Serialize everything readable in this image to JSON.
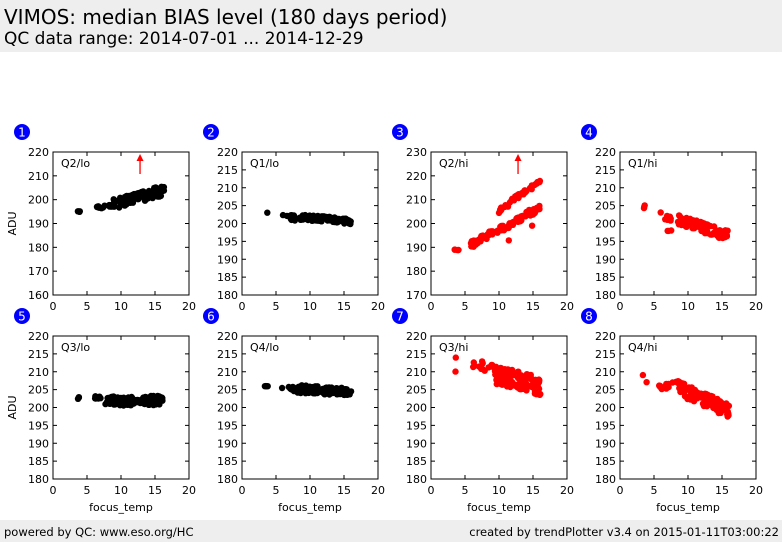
{
  "header": {
    "title": "VIMOS: median BIAS level (180 days period)",
    "subtitle": "QC data range: 2014-07-01 ... 2014-12-29"
  },
  "footer": {
    "left": "powered by QC: www.eso.org/HC",
    "right": "created by trendPlotter v3.4 on 2015-01-11T03:00:22"
  },
  "colors": {
    "lo_series": "#000000",
    "hi_series": "#ff0000",
    "badge": "#0000ff",
    "header_bg": "#eeeeee"
  },
  "chart_data": [
    {
      "type": "scatter",
      "index": "1",
      "label": "Q2/lo",
      "color": "#000000",
      "xlabel": "",
      "ylabel": "ADU",
      "xlim": [
        0,
        20
      ],
      "ylim": [
        160,
        220
      ],
      "xticks": [
        "0",
        "5",
        "10",
        "15",
        "20"
      ],
      "yticks": [
        "160",
        "170",
        "180",
        "190",
        "200",
        "210",
        "220"
      ],
      "out_of_range_arrow": {
        "x": 12.8,
        "direction": "up"
      },
      "clusters": [
        {
          "x0": 3.5,
          "x1": 3.9,
          "y0": 195,
          "y1": 195,
          "spread": 0.3,
          "n": 4
        },
        {
          "x0": 5.8,
          "x1": 9.0,
          "y0": 196,
          "y1": 198,
          "spread": 0.8,
          "n": 14
        },
        {
          "x0": 9.0,
          "x1": 16.3,
          "y0": 198,
          "y1": 204,
          "spread": 2.2,
          "n": 90
        }
      ]
    },
    {
      "type": "scatter",
      "index": "2",
      "label": "Q1/lo",
      "color": "#000000",
      "xlabel": "",
      "ylabel": "",
      "xlim": [
        0,
        20
      ],
      "ylim": [
        180,
        220
      ],
      "xticks": [
        "0",
        "5",
        "10",
        "15",
        "20"
      ],
      "yticks": [
        "180",
        "185",
        "190",
        "195",
        "200",
        "205",
        "210",
        "215",
        "220"
      ],
      "clusters": [
        {
          "x0": 3.6,
          "x1": 3.6,
          "y0": 203,
          "y1": 203,
          "spread": 0.1,
          "n": 1
        },
        {
          "x0": 5.8,
          "x1": 8.0,
          "y0": 202.5,
          "y1": 201.5,
          "spread": 0.8,
          "n": 10
        },
        {
          "x0": 8.5,
          "x1": 16.1,
          "y0": 201.8,
          "y1": 200.6,
          "spread": 0.8,
          "n": 90
        }
      ]
    },
    {
      "type": "scatter",
      "index": "3",
      "label": "Q2/hi",
      "color": "#ff0000",
      "xlabel": "",
      "ylabel": "",
      "xlim": [
        0,
        20
      ],
      "ylim": [
        170,
        230
      ],
      "xticks": [
        "0",
        "5",
        "10",
        "15",
        "20"
      ],
      "yticks": [
        "170",
        "180",
        "190",
        "200",
        "210",
        "220",
        "230"
      ],
      "out_of_range_arrow": {
        "x": 12.8,
        "direction": "up"
      },
      "clusters": [
        {
          "x0": 3.3,
          "x1": 4.0,
          "y0": 189,
          "y1": 189,
          "spread": 0.2,
          "n": 4
        },
        {
          "x0": 5.8,
          "x1": 16.2,
          "y0": 191,
          "y1": 207,
          "spread": 1.5,
          "n": 80
        },
        {
          "x0": 9.8,
          "x1": 16.1,
          "y0": 205,
          "y1": 218,
          "spread": 0.9,
          "n": 45
        },
        {
          "x0": 11.5,
          "x1": 11.5,
          "y0": 193,
          "y1": 193,
          "spread": 0.1,
          "n": 1
        },
        {
          "x0": 14.9,
          "x1": 14.9,
          "y0": 199,
          "y1": 199,
          "spread": 0.1,
          "n": 1
        }
      ]
    },
    {
      "type": "scatter",
      "index": "4",
      "label": "Q1/hi",
      "color": "#ff0000",
      "xlabel": "",
      "ylabel": "",
      "xlim": [
        0,
        20
      ],
      "ylim": [
        180,
        220
      ],
      "xticks": [
        "0",
        "5",
        "10",
        "15",
        "20"
      ],
      "yticks": [
        "180",
        "185",
        "190",
        "195",
        "200",
        "205",
        "210",
        "215",
        "220"
      ],
      "clusters": [
        {
          "x0": 3.6,
          "x1": 3.6,
          "y0": 204.2,
          "y1": 205.0,
          "spread": 0.3,
          "n": 3
        },
        {
          "x0": 5.9,
          "x1": 7.6,
          "y0": 202.5,
          "y1": 201.5,
          "spread": 1.0,
          "n": 8
        },
        {
          "x0": 7.0,
          "x1": 7.7,
          "y0": 198,
          "y1": 198,
          "spread": 0.1,
          "n": 3
        },
        {
          "x0": 8.5,
          "x1": 16.0,
          "y0": 201.2,
          "y1": 196.5,
          "spread": 1.4,
          "n": 90
        }
      ]
    },
    {
      "type": "scatter",
      "index": "5",
      "label": "Q3/lo",
      "color": "#000000",
      "xlabel": "focus_temp",
      "ylabel": "ADU",
      "xlim": [
        0,
        20
      ],
      "ylim": [
        180,
        220
      ],
      "xticks": [
        "0",
        "5",
        "10",
        "15",
        "20"
      ],
      "yticks": [
        "180",
        "185",
        "190",
        "195",
        "200",
        "205",
        "210",
        "215",
        "220"
      ],
      "clusters": [
        {
          "x0": 3.7,
          "x1": 3.9,
          "y0": 202,
          "y1": 203.3,
          "spread": 0.4,
          "n": 3
        },
        {
          "x0": 6.0,
          "x1": 7.8,
          "y0": 203,
          "y1": 202.5,
          "spread": 0.5,
          "n": 8
        },
        {
          "x0": 7.8,
          "x1": 16.1,
          "y0": 201.8,
          "y1": 202,
          "spread": 1.3,
          "n": 110
        }
      ]
    },
    {
      "type": "scatter",
      "index": "6",
      "label": "Q4/lo",
      "color": "#000000",
      "xlabel": "focus_temp",
      "ylabel": "",
      "xlim": [
        0,
        20
      ],
      "ylim": [
        180,
        220
      ],
      "xticks": [
        "0",
        "5",
        "10",
        "15",
        "20"
      ],
      "yticks": [
        "180",
        "185",
        "190",
        "195",
        "200",
        "205",
        "210",
        "215",
        "220"
      ],
      "clusters": [
        {
          "x0": 3.2,
          "x1": 3.9,
          "y0": 206,
          "y1": 206,
          "spread": 0.1,
          "n": 4
        },
        {
          "x0": 5.7,
          "x1": 7.8,
          "y0": 205.8,
          "y1": 205.2,
          "spread": 0.7,
          "n": 10
        },
        {
          "x0": 8.0,
          "x1": 16.3,
          "y0": 205.2,
          "y1": 204.3,
          "spread": 1.1,
          "n": 110
        }
      ]
    },
    {
      "type": "scatter",
      "index": "7",
      "label": "Q3/hi",
      "color": "#ff0000",
      "xlabel": "focus_temp",
      "ylabel": "",
      "xlim": [
        0,
        20
      ],
      "ylim": [
        180,
        220
      ],
      "xticks": [
        "0",
        "5",
        "10",
        "15",
        "20"
      ],
      "yticks": [
        "180",
        "185",
        "190",
        "195",
        "200",
        "205",
        "210",
        "215",
        "220"
      ],
      "clusters": [
        {
          "x0": 3.7,
          "x1": 3.7,
          "y0": 214,
          "y1": 214,
          "spread": 0.1,
          "n": 1
        },
        {
          "x0": 3.7,
          "x1": 3.7,
          "y0": 210,
          "y1": 210,
          "spread": 0.1,
          "n": 1
        },
        {
          "x0": 6.0,
          "x1": 9.8,
          "y0": 212,
          "y1": 211,
          "spread": 1.3,
          "n": 14
        },
        {
          "x0": 9.5,
          "x1": 16.1,
          "y0": 209,
          "y1": 206,
          "spread": 2.6,
          "n": 110
        }
      ]
    },
    {
      "type": "scatter",
      "index": "8",
      "label": "Q4/hi",
      "color": "#ff0000",
      "xlabel": "focus_temp",
      "ylabel": "",
      "xlim": [
        0,
        20
      ],
      "ylim": [
        180,
        220
      ],
      "xticks": [
        "0",
        "5",
        "10",
        "15",
        "20"
      ],
      "yticks": [
        "180",
        "185",
        "190",
        "195",
        "200",
        "205",
        "210",
        "215",
        "220"
      ],
      "clusters": [
        {
          "x0": 3.3,
          "x1": 3.3,
          "y0": 209,
          "y1": 209,
          "spread": 0.1,
          "n": 1
        },
        {
          "x0": 3.8,
          "x1": 3.8,
          "y0": 207,
          "y1": 207,
          "spread": 0.1,
          "n": 1
        },
        {
          "x0": 5.6,
          "x1": 8.5,
          "y0": 205.5,
          "y1": 206.5,
          "spread": 0.8,
          "n": 12
        },
        {
          "x0": 8.5,
          "x1": 16.1,
          "y0": 205.5,
          "y1": 199,
          "spread": 2.0,
          "n": 110
        }
      ]
    }
  ]
}
